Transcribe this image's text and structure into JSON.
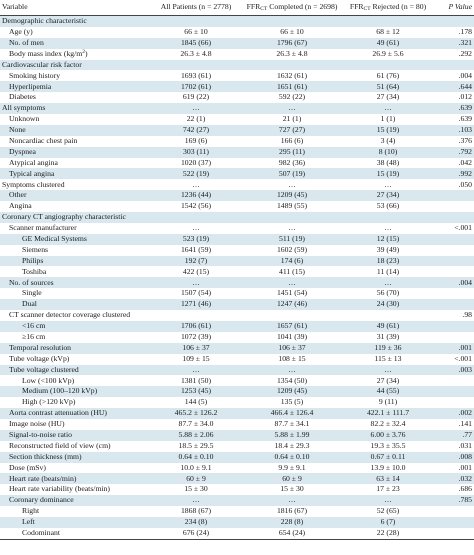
{
  "header": {
    "variable": "Variable",
    "all_patients": "All Patients (n = 2778)",
    "completed_pre": "FFR",
    "completed_sub": "CT",
    "completed_post": " Completed (n = 2698)",
    "rejected_pre": "FFR",
    "rejected_sub": "CT",
    "rejected_post": " Rejected (n = 80)",
    "p_value": "P Value"
  },
  "rows": [
    {
      "label": "Demographic characteristic",
      "all": "",
      "completed": "",
      "rejected": "",
      "p": "",
      "level": 0,
      "shade": true
    },
    {
      "label": "Age (y)",
      "all": "66 ± 10",
      "completed": "66 ± 10",
      "rejected": "68 ± 12",
      "p": ".178",
      "level": 1,
      "shade": false
    },
    {
      "label": "No. of men",
      "all": "1845 (66)",
      "completed": "1796 (67)",
      "rejected": "49 (61)",
      "p": ".321",
      "level": 1,
      "shade": true
    },
    {
      "label": "Body mass index (kg/m",
      "label_sup": "2",
      "label_post": ")",
      "all": "26.3 ± 4.8",
      "completed": "26.3 ± 4.8",
      "rejected": "26.9 ± 5.6",
      "p": ".292",
      "level": 1,
      "shade": false
    },
    {
      "label": "Cardiovascular risk factor",
      "all": "",
      "completed": "",
      "rejected": "",
      "p": "",
      "level": 0,
      "shade": true
    },
    {
      "label": "Smoking history",
      "all": "1693 (61)",
      "completed": "1632 (61)",
      "rejected": "61 (76)",
      "p": ".004",
      "level": 1,
      "shade": false
    },
    {
      "label": "Hyperlipemia",
      "all": "1702 (61)",
      "completed": "1651 (61)",
      "rejected": "51 (64)",
      "p": ".644",
      "level": 1,
      "shade": true
    },
    {
      "label": "Diabetes",
      "all": "619 (22)",
      "completed": "592 (22)",
      "rejected": "27 (34)",
      "p": ".012",
      "level": 1,
      "shade": false
    },
    {
      "label": "All symptoms",
      "all": "…",
      "completed": "…",
      "rejected": "…",
      "p": ".639",
      "level": 0,
      "shade": true
    },
    {
      "label": "Unknown",
      "all": "22 (1)",
      "completed": "21 (1)",
      "rejected": "1 (1)",
      "p": ".639",
      "level": 1,
      "shade": false
    },
    {
      "label": "None",
      "all": "742 (27)",
      "completed": "727 (27)",
      "rejected": "15 (19)",
      "p": ".103",
      "level": 1,
      "shade": true
    },
    {
      "label": "Noncardiac chest pain",
      "all": "169 (6)",
      "completed": "166 (6)",
      "rejected": "3 (4)",
      "p": ".376",
      "level": 1,
      "shade": false
    },
    {
      "label": "Dyspnea",
      "all": "303 (11)",
      "completed": "295 (11)",
      "rejected": "8 (10)",
      "p": ".792",
      "level": 1,
      "shade": true
    },
    {
      "label": "Atypical angina",
      "all": "1020 (37)",
      "completed": "982 (36)",
      "rejected": "38 (48)",
      "p": ".042",
      "level": 1,
      "shade": false
    },
    {
      "label": "Typical angina",
      "all": "522 (19)",
      "completed": "507 (19)",
      "rejected": "15 (19)",
      "p": ".992",
      "level": 1,
      "shade": true
    },
    {
      "label": "Symptoms clustered",
      "all": "…",
      "completed": "…",
      "rejected": "…",
      "p": ".050",
      "level": 0,
      "shade": false
    },
    {
      "label": "Other",
      "all": "1236 (44)",
      "completed": "1209 (45)",
      "rejected": "27 (34)",
      "p": "",
      "level": 1,
      "shade": true
    },
    {
      "label": "Angina",
      "all": "1542 (56)",
      "completed": "1489 (55)",
      "rejected": "53 (66)",
      "p": "",
      "level": 1,
      "shade": false
    },
    {
      "label": "Coronary CT angiography characteristic",
      "all": "",
      "completed": "",
      "rejected": "",
      "p": "",
      "level": 0,
      "shade": true
    },
    {
      "label": "Scanner manufacturer",
      "all": "…",
      "completed": "…",
      "rejected": "…",
      "p": "<.001",
      "level": 1,
      "shade": false
    },
    {
      "label": "GE Medical Systems",
      "all": "523 (19)",
      "completed": "511 (19)",
      "rejected": "12 (15)",
      "p": "",
      "level": 2,
      "shade": true
    },
    {
      "label": "Siemens",
      "all": "1641 (59)",
      "completed": "1602 (59)",
      "rejected": "39 (49)",
      "p": "",
      "level": 2,
      "shade": false
    },
    {
      "label": "Philips",
      "all": "192 (7)",
      "completed": "174 (6)",
      "rejected": "18 (23)",
      "p": "",
      "level": 2,
      "shade": true
    },
    {
      "label": "Toshiba",
      "all": "422 (15)",
      "completed": "411 (15)",
      "rejected": "11 (14)",
      "p": "",
      "level": 2,
      "shade": false
    },
    {
      "label": "No. of sources",
      "all": "…",
      "completed": "…",
      "rejected": "…",
      "p": ".004",
      "level": 1,
      "shade": true
    },
    {
      "label": "Single",
      "all": "1507 (54)",
      "completed": "1451 (54)",
      "rejected": "56 (70)",
      "p": "",
      "level": 2,
      "shade": false
    },
    {
      "label": "Dual",
      "all": "1271 (46)",
      "completed": "1247 (46)",
      "rejected": "24 (30)",
      "p": "",
      "level": 2,
      "shade": true
    },
    {
      "label": "CT scanner detector coverage clustered",
      "all": "",
      "completed": "",
      "rejected": "",
      "p": ".98",
      "level": 1,
      "shade": false
    },
    {
      "label": "<16 cm",
      "all": "1706 (61)",
      "completed": "1657 (61)",
      "rejected": "49 (61)",
      "p": "",
      "level": 2,
      "shade": true
    },
    {
      "label": "≥16 cm",
      "all": "1072 (39)",
      "completed": "1041 (39)",
      "rejected": "31 (39)",
      "p": "",
      "level": 2,
      "shade": false
    },
    {
      "label": "Temporal resolution",
      "all": "106 ± 37",
      "completed": "106 ± 37",
      "rejected": "119 ± 36",
      "p": ".001",
      "level": 1,
      "shade": true
    },
    {
      "label": "Tube voltage (kVp)",
      "all": "109 ± 15",
      "completed": "108 ± 15",
      "rejected": "115 ± 13",
      "p": "<.001",
      "level": 1,
      "shade": false
    },
    {
      "label": "Tube voltage clustered",
      "all": "…",
      "completed": "…",
      "rejected": "…",
      "p": ".003",
      "level": 1,
      "shade": true
    },
    {
      "label": "Low (<100 kVp)",
      "all": "1381 (50)",
      "completed": "1354 (50)",
      "rejected": "27 (34)",
      "p": "",
      "level": 2,
      "shade": false
    },
    {
      "label": "Medium (100–120 kVp)",
      "all": "1253 (45)",
      "completed": "1209 (45)",
      "rejected": "44 (55)",
      "p": "",
      "level": 2,
      "shade": true
    },
    {
      "label": "High (>120 kVp)",
      "all": "144 (5)",
      "completed": "135 (5)",
      "rejected": "9 (11)",
      "p": "",
      "level": 2,
      "shade": false
    },
    {
      "label": "Aorta contrast attenuation (HU)",
      "all": "465.2 ± 126.2",
      "completed": "466.4 ± 126.4",
      "rejected": "422.1 ± 111.7",
      "p": ".002",
      "level": 1,
      "shade": true
    },
    {
      "label": "Image noise (HU)",
      "all": "87.7 ± 34.0",
      "completed": "87.7 ± 34.1",
      "rejected": "82.2 ± 32.4",
      "p": ".141",
      "level": 1,
      "shade": false
    },
    {
      "label": "Signal-to-noise ratio",
      "all": "5.88 ± 2.06",
      "completed": "5.88 ± 1.99",
      "rejected": "6.00 ± 3.76",
      "p": ".77",
      "level": 1,
      "shade": true
    },
    {
      "label": "Reconstructed field of view (cm)",
      "all": "18.5 ± 29.5",
      "completed": "18.4 ± 29.3",
      "rejected": "19.3 ± 35.5",
      "p": ".031",
      "level": 1,
      "shade": false
    },
    {
      "label": "Section thickness (mm)",
      "all": "0.64 ± 0.10",
      "completed": "0.64 ± 0.10",
      "rejected": "0.67 ± 0.11",
      "p": ".008",
      "level": 1,
      "shade": true
    },
    {
      "label": "Dose (mSv)",
      "all": "10.0 ± 9.1",
      "completed": "9.9 ± 9.1",
      "rejected": "13.9 ± 10.0",
      "p": ".001",
      "level": 1,
      "shade": false
    },
    {
      "label": "Heart rate (beats/min)",
      "all": "60 ± 9",
      "completed": "60 ± 9",
      "rejected": "63 ± 14",
      "p": ".032",
      "level": 1,
      "shade": true
    },
    {
      "label": "Heart rate variability (beats/min)",
      "all": "15 ± 30",
      "completed": "15 ± 30",
      "rejected": "17 ± 23",
      "p": ".686",
      "level": 1,
      "shade": false
    },
    {
      "label": "Coronary dominance",
      "all": "…",
      "completed": "…",
      "rejected": "…",
      "p": ".785",
      "level": 1,
      "shade": true
    },
    {
      "label": "Right",
      "all": "1868 (67)",
      "completed": "1816 (67)",
      "rejected": "52 (65)",
      "p": "",
      "level": 2,
      "shade": false
    },
    {
      "label": "Left",
      "all": "234 (8)",
      "completed": "228 (8)",
      "rejected": "6 (7)",
      "p": "",
      "level": 2,
      "shade": true
    },
    {
      "label": "Codominant",
      "all": "676 (24)",
      "completed": "654 (24)",
      "rejected": "22 (28)",
      "p": "",
      "level": 2,
      "shade": false
    }
  ]
}
